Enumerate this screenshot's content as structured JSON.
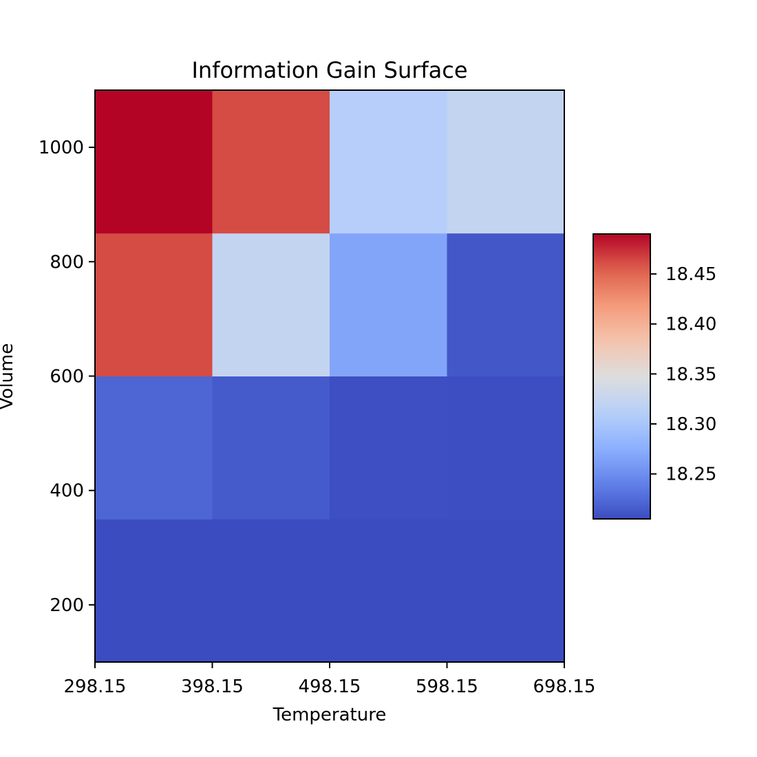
{
  "chart_data": {
    "type": "heatmap",
    "title": "Information Gain Surface",
    "xlabel": "Temperature",
    "ylabel": "Volume",
    "x_edges": [
      298.15,
      398.15,
      498.15,
      598.15,
      698.15
    ],
    "y_edges": [
      100,
      350,
      600,
      850,
      1100
    ],
    "x_ticks": [
      298.15,
      398.15,
      498.15,
      598.15,
      698.15
    ],
    "x_tick_labels": [
      "298.15",
      "398.15",
      "498.15",
      "598.15",
      "698.15"
    ],
    "y_ticks": [
      200,
      400,
      600,
      800,
      1000
    ],
    "y_tick_labels": [
      "200",
      "400",
      "600",
      "800",
      "1000"
    ],
    "xlim": [
      298.15,
      698.15
    ],
    "ylim": [
      100,
      1100
    ],
    "values": [
      [
        18.205,
        18.205,
        18.205,
        18.205
      ],
      [
        18.222,
        18.214,
        18.207,
        18.206
      ],
      [
        18.462,
        18.322,
        18.268,
        18.212
      ],
      [
        18.49,
        18.462,
        18.31,
        18.322
      ]
    ],
    "colorbar": {
      "colormap": "coolwarm",
      "range": [
        18.205,
        18.49
      ],
      "ticks": [
        18.25,
        18.3,
        18.35,
        18.4,
        18.45
      ],
      "tick_labels": [
        "18.25",
        "18.30",
        "18.35",
        "18.40",
        "18.45"
      ]
    },
    "grid": false
  }
}
